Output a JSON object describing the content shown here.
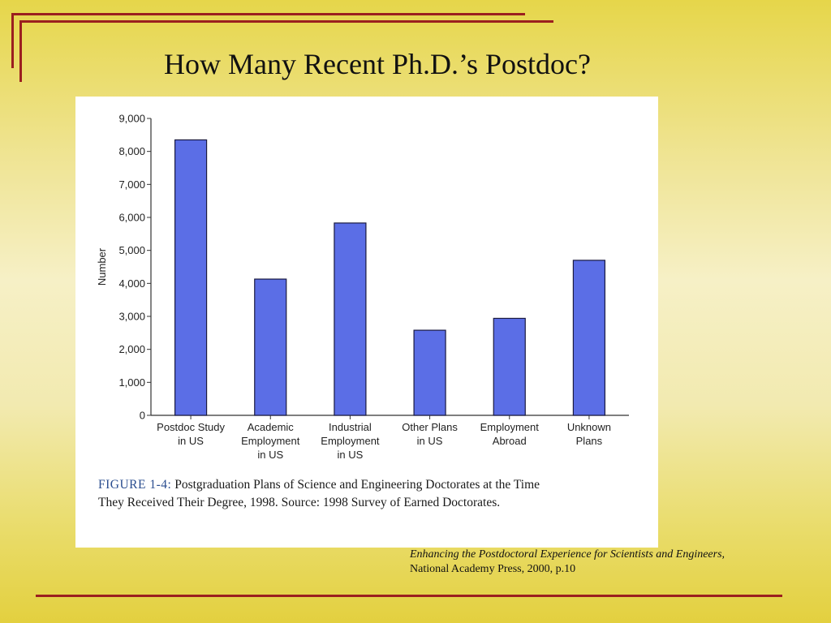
{
  "slide": {
    "title": "How Many Recent Ph.D.’s Postdoc?"
  },
  "figure": {
    "label": "FIGURE 1-4:",
    "caption_line1": "Postgraduation Plans of Science and Engineering Doctorates at the Time",
    "caption_line2": "They Received Their Degree, 1998. Source: 1998 Survey of Earned Doctorates."
  },
  "citation": {
    "title": "Enhancing the Postdoctoral Experience for Scientists and Engineers,",
    "publisher": "National Academy Press, 2000, p.10"
  },
  "chart_data": {
    "type": "bar",
    "title": "",
    "xlabel": "",
    "ylabel": "Number",
    "ylim": [
      0,
      9000
    ],
    "yticks": [
      0,
      1000,
      2000,
      3000,
      4000,
      5000,
      6000,
      7000,
      8000,
      9000
    ],
    "ytick_labels": [
      "0",
      "1,000",
      "2,000",
      "3,000",
      "4,000",
      "5,000",
      "6,000",
      "7,000",
      "8,000",
      "9,000"
    ],
    "categories": [
      [
        "Postdoc Study",
        "in US"
      ],
      [
        "Academic",
        "Employment",
        "in US"
      ],
      [
        "Industrial",
        "Employment",
        "in US"
      ],
      [
        "Other Plans",
        "in US"
      ],
      [
        "Employment",
        "Abroad"
      ],
      [
        "Unknown",
        "Plans"
      ]
    ],
    "values": [
      8350,
      4130,
      5830,
      2580,
      2940,
      4700
    ],
    "grid": false,
    "bar_color": "#5b6ee6",
    "bar_edge_color": "#1a1a40"
  }
}
